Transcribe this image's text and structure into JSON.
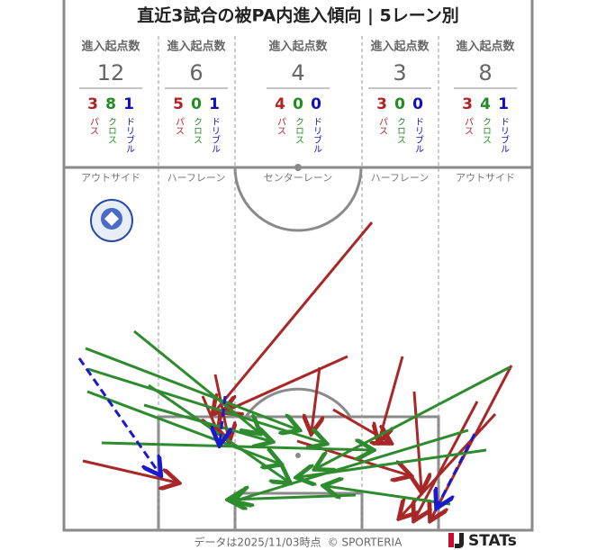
{
  "title": "直近3試合の被PA内進入傾向 | 5レーン別",
  "lanes": [
    {
      "header": "進入起点数",
      "total": 12,
      "pass": 3,
      "cross": 8,
      "dribble": 1,
      "pass_label": "パス",
      "cross_label": "クロス",
      "dribble_label": "ドリブル",
      "lane_name": "アウトサイド"
    },
    {
      "header": "進入起点数",
      "total": 6,
      "pass": 5,
      "cross": 0,
      "dribble": 1,
      "pass_label": "パス",
      "cross_label": "クロス",
      "dribble_label": "ドリブル",
      "lane_name": "ハーフレーン"
    },
    {
      "header": "進入起点数",
      "total": 4,
      "pass": 4,
      "cross": 0,
      "dribble": 0,
      "pass_label": "パス",
      "cross_label": "クロス",
      "dribble_label": "ドリブル",
      "lane_name": "センターレーン"
    },
    {
      "header": "進入起点数",
      "total": 3,
      "pass": 3,
      "cross": 0,
      "dribble": 0,
      "pass_label": "パス",
      "cross_label": "クロス",
      "dribble_label": "ドリブル",
      "lane_name": "ハーフレーン"
    },
    {
      "header": "進入起点数",
      "total": 8,
      "pass": 3,
      "cross": 4,
      "dribble": 1,
      "pass_label": "パス",
      "cross_label": "クロス",
      "dribble_label": "ドリブル",
      "lane_name": "アウトサイド"
    }
  ],
  "footer": {
    "date": "データは2025/11/03時点",
    "copyright": "© SPORTERIA",
    "brand": "STATs"
  }
}
